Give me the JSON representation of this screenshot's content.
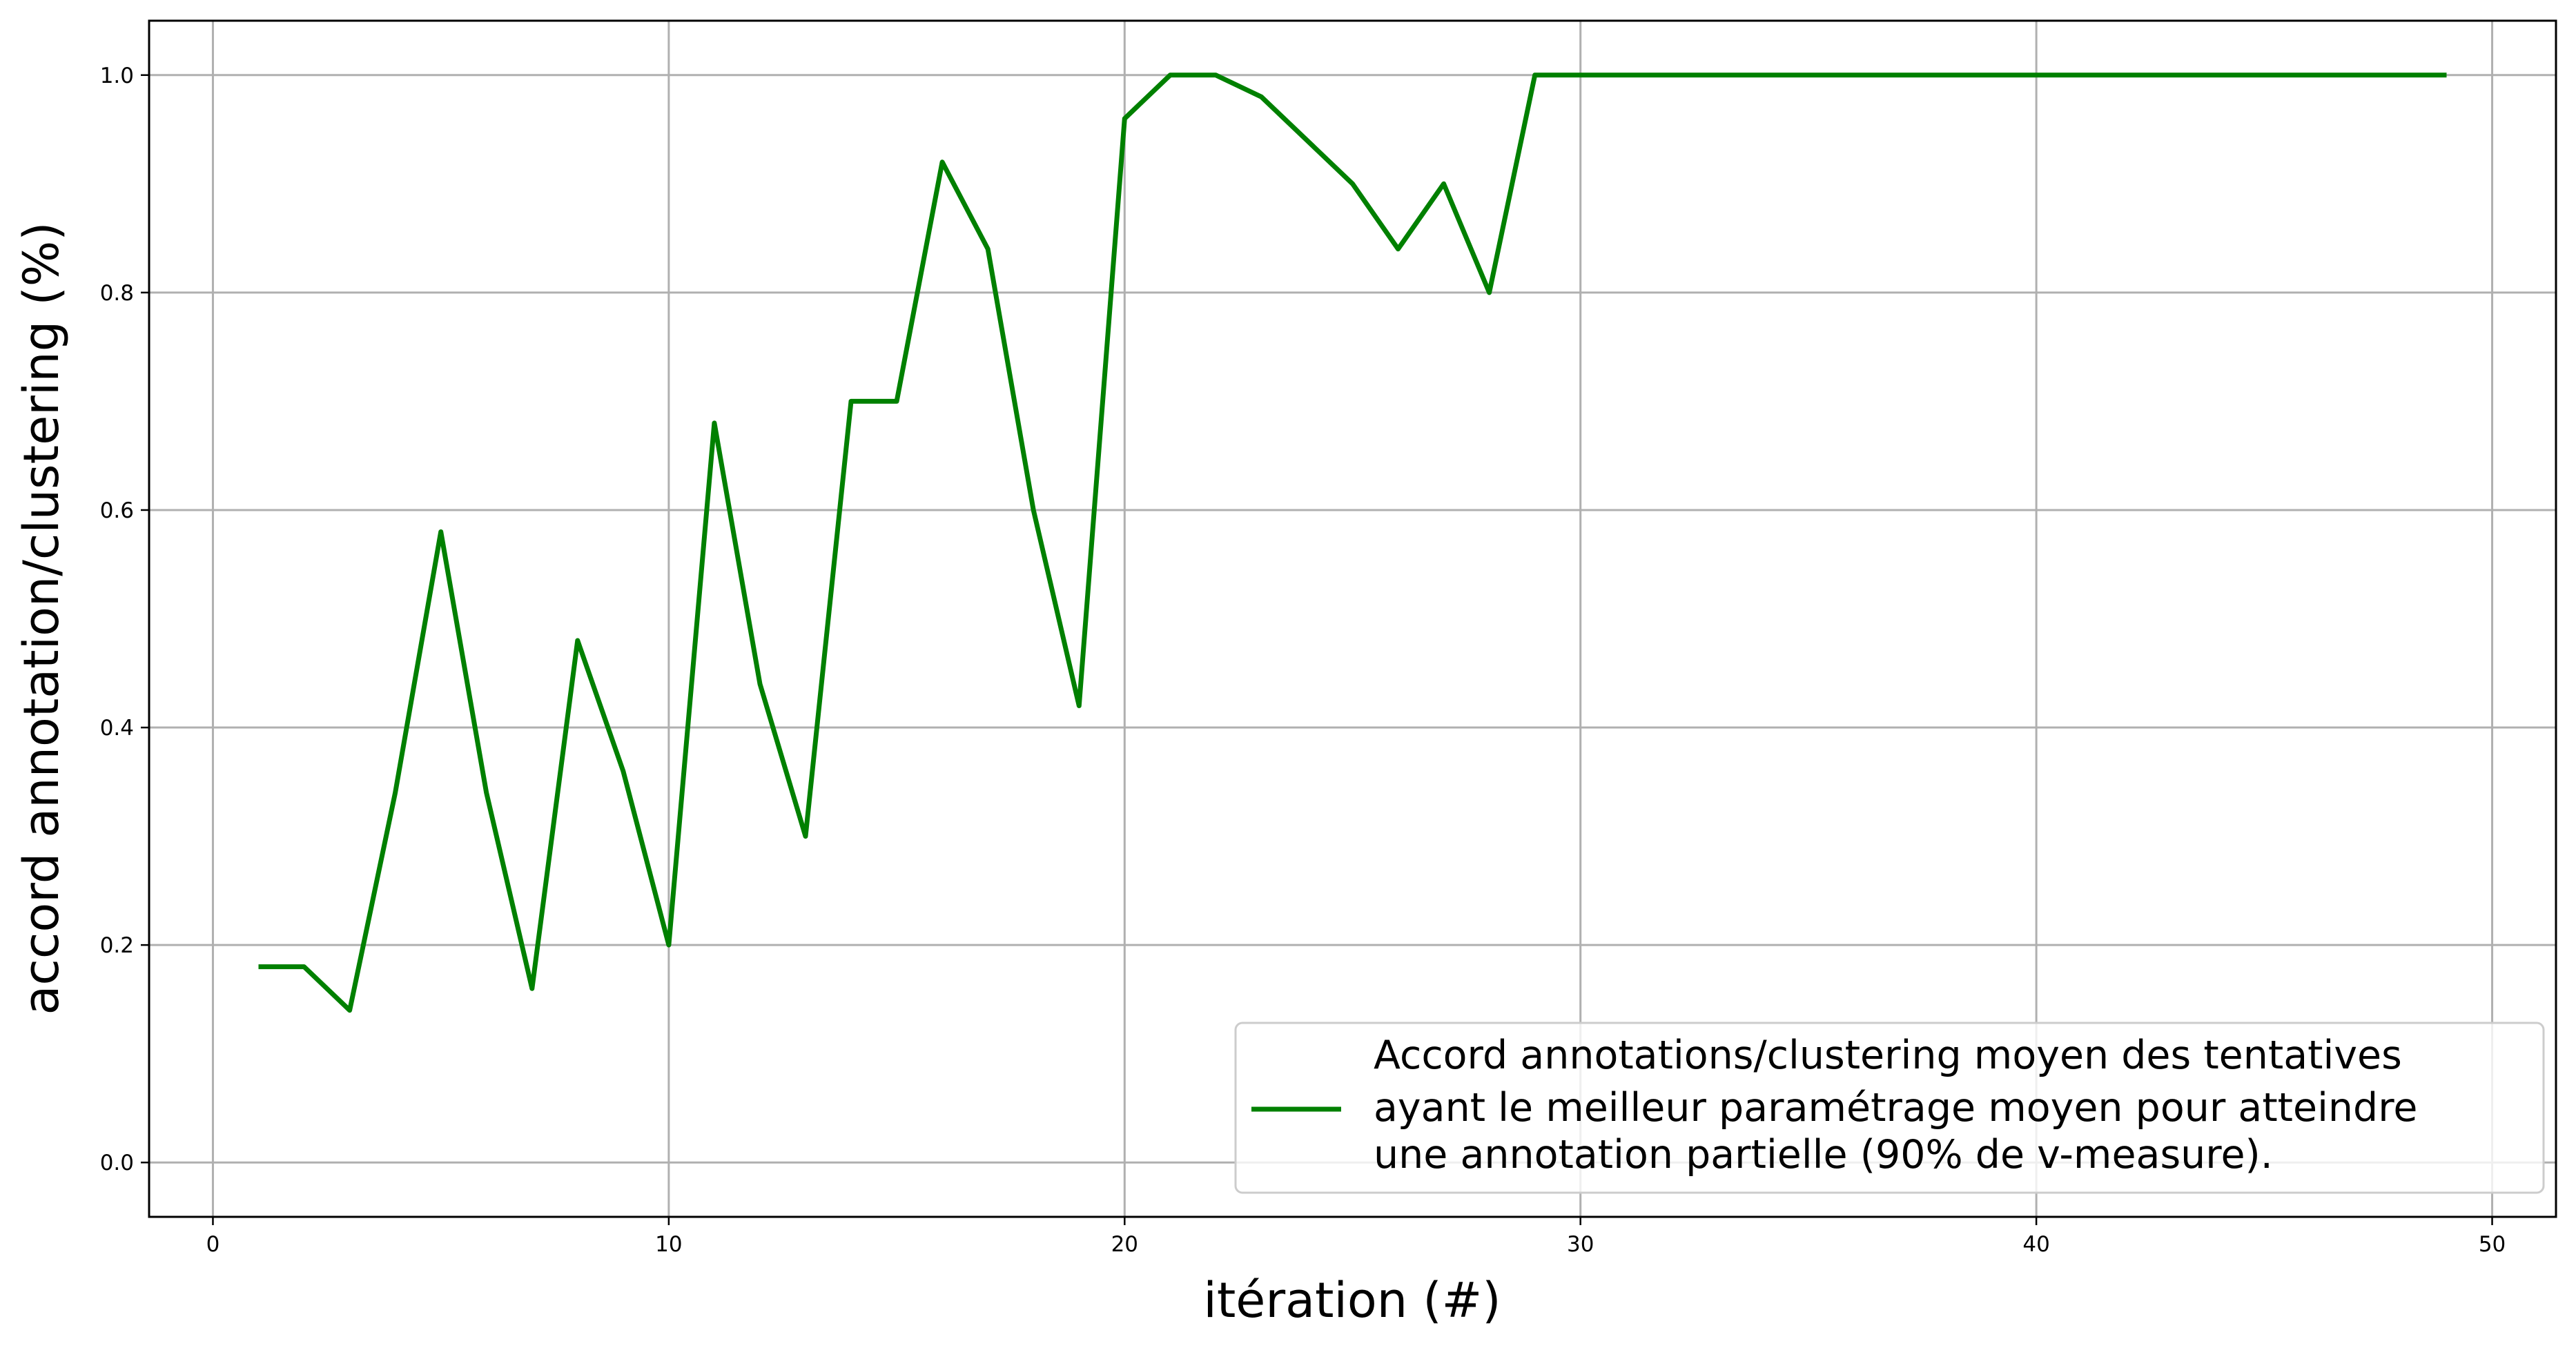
{
  "chart_data": {
    "type": "line",
    "xlabel": "itération (#)",
    "ylabel": "accord annotation/clustering (%)",
    "xlim": [
      -1.4,
      51.4
    ],
    "ylim": [
      -0.05,
      1.05
    ],
    "xticks": [
      0,
      10,
      20,
      30,
      40,
      50
    ],
    "yticks": [
      0.0,
      0.2,
      0.4,
      0.6,
      0.8,
      1.0
    ],
    "xtick_labels": [
      "0",
      "10",
      "20",
      "30",
      "40",
      "50"
    ],
    "ytick_labels": [
      "0.0",
      "0.2",
      "0.4",
      "0.6",
      "0.8",
      "1.0"
    ],
    "grid": true,
    "legend_position": "bottom-right",
    "series": [
      {
        "name": "Accord annotations/clustering moyen des tentatives ayant le meilleur paramétrage moyen pour atteindre une annotation partielle (90% de v-measure).",
        "legend_lines": [
          "Accord annotations/clustering moyen des tentatives",
          "ayant le meilleur paramétrage moyen pour atteindre",
          "une annotation partielle (90% de v-measure)."
        ],
        "color": "#008000",
        "x": [
          1,
          2,
          3,
          4,
          5,
          6,
          7,
          8,
          9,
          10,
          11,
          12,
          13,
          14,
          15,
          16,
          17,
          18,
          19,
          20,
          21,
          22,
          23,
          24,
          25,
          26,
          27,
          28,
          29,
          30,
          31,
          32,
          33,
          34,
          35,
          36,
          37,
          38,
          39,
          40,
          41,
          42,
          43,
          44,
          45,
          46,
          47,
          48,
          49
        ],
        "y": [
          0.18,
          0.18,
          0.14,
          0.34,
          0.58,
          0.34,
          0.16,
          0.48,
          0.36,
          0.2,
          0.68,
          0.44,
          0.3,
          0.7,
          0.7,
          0.92,
          0.84,
          0.6,
          0.42,
          0.96,
          1.0,
          1.0,
          0.98,
          0.94,
          0.9,
          0.84,
          0.9,
          0.8,
          1.0,
          1.0,
          1.0,
          1.0,
          1.0,
          1.0,
          1.0,
          1.0,
          1.0,
          1.0,
          1.0,
          1.0,
          1.0,
          1.0,
          1.0,
          1.0,
          1.0,
          1.0,
          1.0,
          1.0,
          1.0
        ]
      }
    ]
  }
}
